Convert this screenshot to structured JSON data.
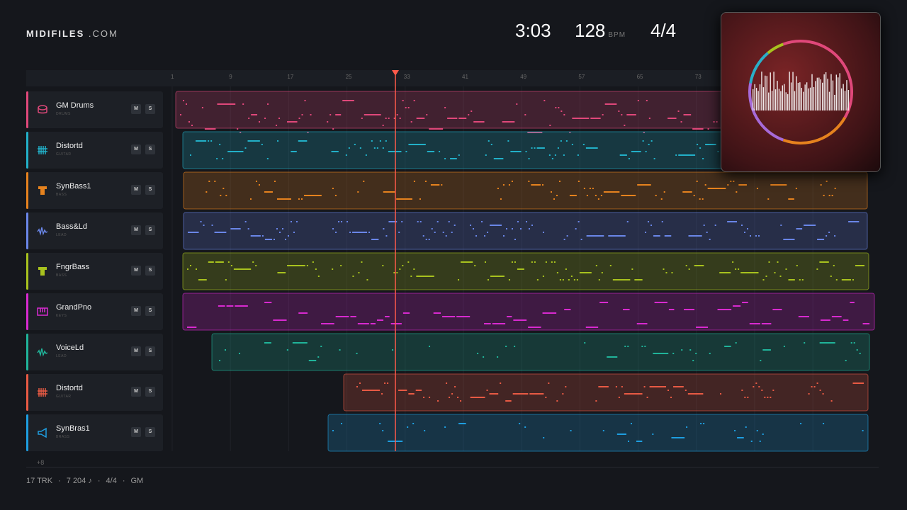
{
  "header": {
    "brand": "MIDIFILES",
    "brand_suffix": ".COM",
    "time": "3:03",
    "tempo": "128",
    "tempo_unit": "BPM",
    "meter": "4/4"
  },
  "ruler": [
    "1",
    "9",
    "17",
    "25",
    "33",
    "41",
    "49",
    "57",
    "65",
    "73"
  ],
  "tracks": [
    {
      "name": "GM Drums",
      "category": "DRUMS",
      "color": "#e0487a",
      "mute": "M",
      "solo": "S"
    },
    {
      "name": "Distortd",
      "category": "GUITAR",
      "color": "#22b0c8",
      "mute": "M",
      "solo": "S"
    },
    {
      "name": "SynBass1",
      "category": "BASS",
      "color": "#e6821e",
      "mute": "M",
      "solo": "S"
    },
    {
      "name": "Bass&Ld",
      "category": "LEAD",
      "color": "#6a86e8",
      "mute": "M",
      "solo": "S"
    },
    {
      "name": "FngrBass",
      "category": "BASS",
      "color": "#a8c21e",
      "mute": "M",
      "solo": "S"
    },
    {
      "name": "GrandPno",
      "category": "KEYS",
      "color": "#d82ad0",
      "mute": "M",
      "solo": "S"
    },
    {
      "name": "VoiceLd",
      "category": "LEAD",
      "color": "#20b49a",
      "mute": "M",
      "solo": "S"
    },
    {
      "name": "Distortd",
      "category": "GUITAR",
      "color": "#e85a44",
      "mute": "M",
      "solo": "S"
    },
    {
      "name": "SynBras1",
      "category": "BRASS",
      "color": "#1e9ee0",
      "mute": "M",
      "solo": "S"
    }
  ],
  "more_tracks": "+8",
  "footer": {
    "items": [
      "17 TRK",
      "7 204 ♪",
      "4/4",
      "GM"
    ],
    "separator": "·"
  }
}
